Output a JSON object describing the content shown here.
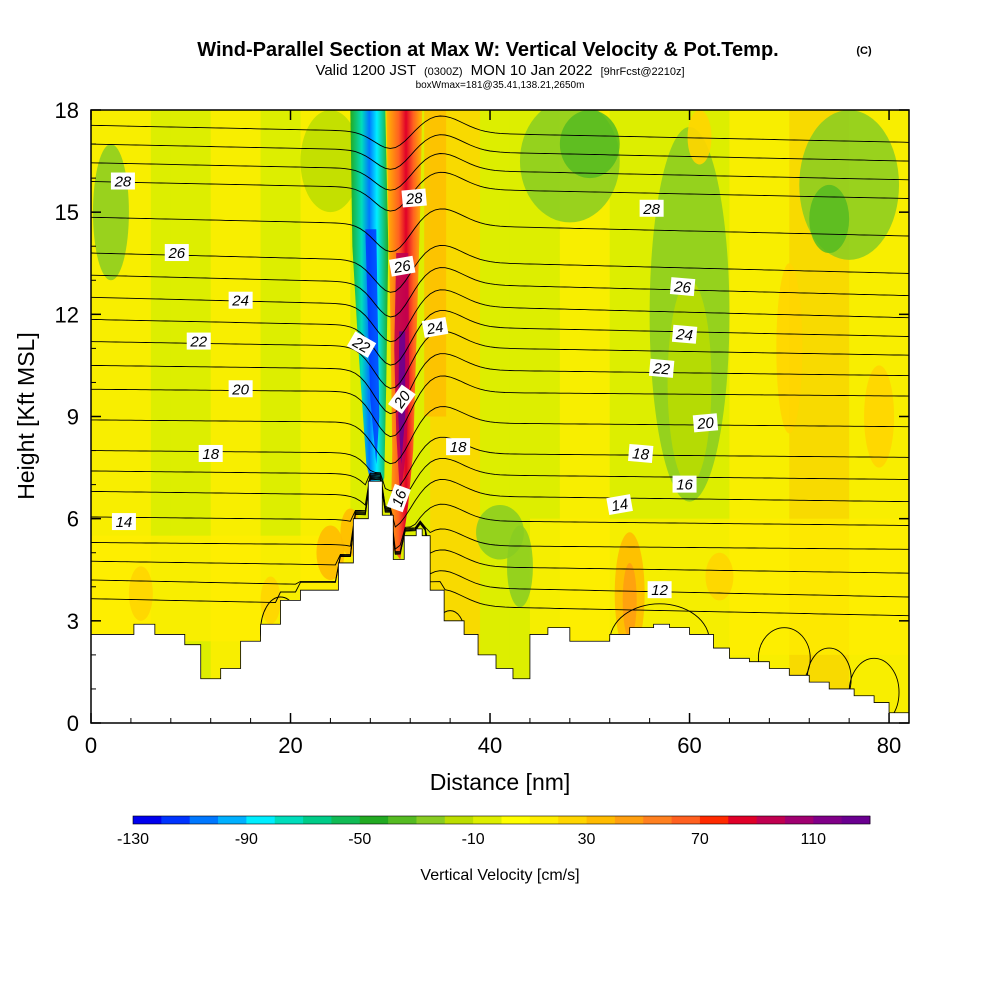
{
  "chart_data": {
    "type": "heatmap",
    "title": "Wind-Parallel Section at Max W: Vertical Velocity & Pot.Temp.",
    "title_mark": "(C)",
    "subtitle_parts": [
      "Valid 1200 JST",
      "(0300Z)",
      "MON 10 Jan 2022",
      "[9hrFcst@2210z]"
    ],
    "subtitle2": "boxWmax=181@35.41,138.21,2650m",
    "xlabel": "Distance [nm]",
    "ylabel": "Height [Kft MSL]",
    "xlim": [
      0,
      82
    ],
    "ylim": [
      0,
      18
    ],
    "x_ticks": [
      "0",
      "20",
      "40",
      "60",
      "80"
    ],
    "y_ticks": [
      "0",
      "3",
      "6",
      "9",
      "12",
      "15",
      "18"
    ],
    "colorbar": {
      "label": "Vertical Velocity [cm/s]",
      "range": [
        -130,
        130
      ],
      "tick_labels": [
        "-130",
        "-90",
        "-50",
        "-10",
        "30",
        "70",
        "110"
      ],
      "colors": [
        "#0000ee",
        "#0033ff",
        "#0077ff",
        "#00b0ff",
        "#00eeff",
        "#00ddbb",
        "#00cc88",
        "#11bb55",
        "#22aa22",
        "#55bb22",
        "#88cc22",
        "#bbdd00",
        "#ddee00",
        "#ffff00",
        "#ffee00",
        "#ffd500",
        "#ffbb00",
        "#ff9f10",
        "#ff8020",
        "#ff6020",
        "#ff2a00",
        "#e00028",
        "#c00050",
        "#a00070",
        "#800088",
        "#6a0090"
      ]
    },
    "updraft": {
      "x": 31,
      "y_range": [
        4.8,
        16
      ],
      "max_w": 120
    },
    "downdraft": {
      "x": 28,
      "y_range": [
        6.3,
        14.5
      ],
      "min_w": -130
    },
    "terrain": {
      "x": [
        0,
        4.3,
        6.4,
        9.4,
        11,
        13,
        15,
        17,
        19,
        21,
        24.8,
        26.3,
        27.8,
        29.2,
        30.3,
        31.4,
        32.6,
        33.2,
        34,
        35.4,
        37.4,
        38.8,
        40.6,
        42.3,
        44,
        45.8,
        48,
        50,
        52,
        54,
        56.4,
        58,
        60,
        62.4,
        64,
        66,
        68,
        70,
        72,
        74,
        76.5,
        78.5,
        80,
        82
      ],
      "height": [
        2.6,
        2.9,
        2.6,
        2.3,
        1.3,
        1.6,
        2.4,
        2.9,
        3.6,
        3.9,
        4.7,
        6.0,
        7.1,
        6.1,
        4.8,
        5.5,
        5.7,
        5.5,
        3.9,
        3.0,
        2.6,
        2.0,
        1.6,
        1.3,
        2.6,
        2.8,
        2.4,
        2.4,
        2.6,
        2.8,
        2.9,
        2.8,
        2.6,
        2.2,
        1.9,
        1.8,
        1.6,
        1.4,
        1.2,
        1.0,
        0.8,
        0.6,
        0.3,
        0.5
      ]
    },
    "isentropes": [
      {
        "theta": 12,
        "label": "12",
        "y_left": 4.2,
        "y_right": 3.7,
        "label_x": 57,
        "label_y": 3.9
      },
      {
        "theta": 14,
        "label": "14",
        "y_left": 5.3,
        "y_right": 5.1,
        "label_x": 3.3,
        "label_y": 5.9
      },
      {
        "theta": 16,
        "label": "16",
        "y_left": 6.8,
        "y_right": 6.5,
        "label_x": 59.5,
        "label_y": 7.0
      },
      {
        "theta": 18,
        "label": "18",
        "y_left": 8.0,
        "y_right": 7.8,
        "label_x": 12,
        "label_y": 7.9
      },
      {
        "theta": 20,
        "label": "20",
        "y_left": 9.8,
        "y_right": 9.6,
        "label_x": 15,
        "label_y": 9.8
      },
      {
        "theta": 22,
        "label": "22",
        "y_left": 11.2,
        "y_right": 10.8,
        "label_x": 10.8,
        "label_y": 11.2
      },
      {
        "theta": 24,
        "label": "24",
        "y_left": 12.5,
        "y_right": 11.9,
        "label_x": 15,
        "label_y": 12.4
      },
      {
        "theta": 26,
        "label": "26",
        "y_left": 13.8,
        "y_right": 13.2,
        "label_x": 8.6,
        "label_y": 13.8
      },
      {
        "theta": 28,
        "label": "28",
        "y_left": 15.9,
        "y_right": 15.4,
        "label_x": 3.2,
        "label_y": 15.9
      }
    ],
    "extra_contour_labels": [
      {
        "label": "28",
        "x": 32.4,
        "y": 15.4
      },
      {
        "label": "26",
        "x": 31.2,
        "y": 13.4
      },
      {
        "label": "24",
        "x": 34.5,
        "y": 11.6
      },
      {
        "label": "22",
        "x": 27.1,
        "y": 11.1
      },
      {
        "label": "20",
        "x": 31.2,
        "y": 9.5
      },
      {
        "label": "18",
        "x": 36.8,
        "y": 8.1
      },
      {
        "label": "16",
        "x": 30.9,
        "y": 6.6
      },
      {
        "label": "14",
        "x": 53,
        "y": 6.4
      },
      {
        "label": "28",
        "x": 56.2,
        "y": 15.1
      },
      {
        "label": "26",
        "x": 59.3,
        "y": 12.8
      },
      {
        "label": "24",
        "x": 59.5,
        "y": 11.4
      },
      {
        "label": "22",
        "x": 57.2,
        "y": 10.4
      },
      {
        "label": "20",
        "x": 61.6,
        "y": 8.8
      },
      {
        "label": "18",
        "x": 55.1,
        "y": 7.9
      }
    ]
  }
}
